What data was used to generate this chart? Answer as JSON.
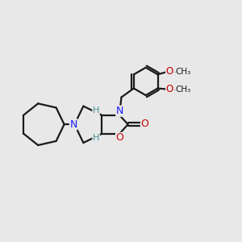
{
  "background_color": "#e8e8e8",
  "line_color": "#1a1a1a",
  "bond_lw": 1.6,
  "N_color": "#1a1aff",
  "O_color": "#cc0000",
  "H_color": "#4a9090",
  "methoxy_color": "#1a1a1a",
  "xlim": [
    -4.2,
    7.8
  ],
  "ylim": [
    -3.5,
    4.2
  ]
}
